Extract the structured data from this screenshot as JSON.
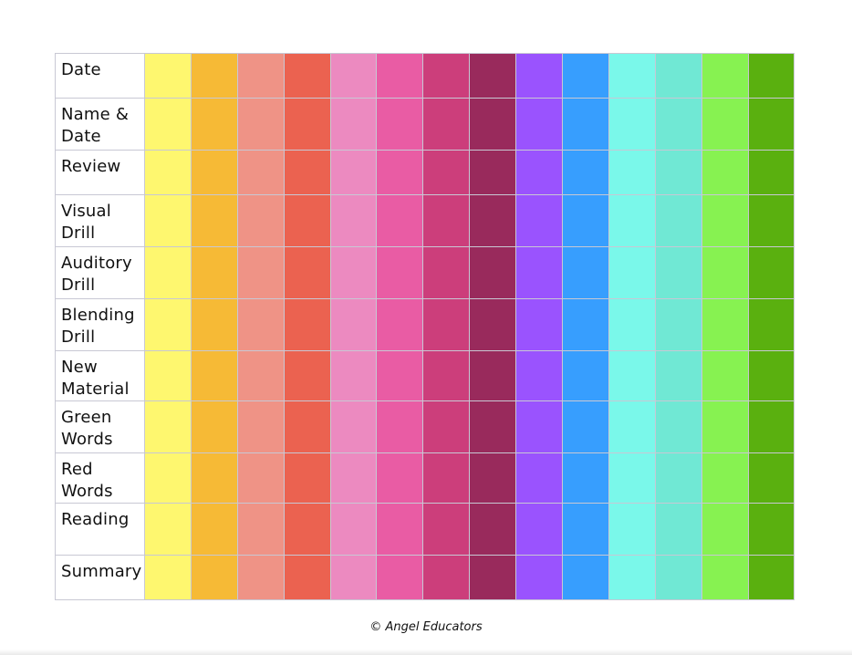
{
  "rows": [
    "Date",
    "Name & Date",
    "Review",
    "Visual Drill",
    "Auditory Drill",
    "Blending Drill",
    "New Material",
    "Green Words",
    "Red Words",
    "Reading",
    "Summary"
  ],
  "columns": [
    "#FEF76F",
    "#F6BA36",
    "#EF9386",
    "#EB6250",
    "#EC8AC0",
    "#E95CA4",
    "#CC3E7B",
    "#992A5C",
    "#9A53FE",
    "#379EFE",
    "#7AF8EA",
    "#70E8D4",
    "#87F251",
    "#5AB00F"
  ],
  "footer": "© Angel Educators"
}
